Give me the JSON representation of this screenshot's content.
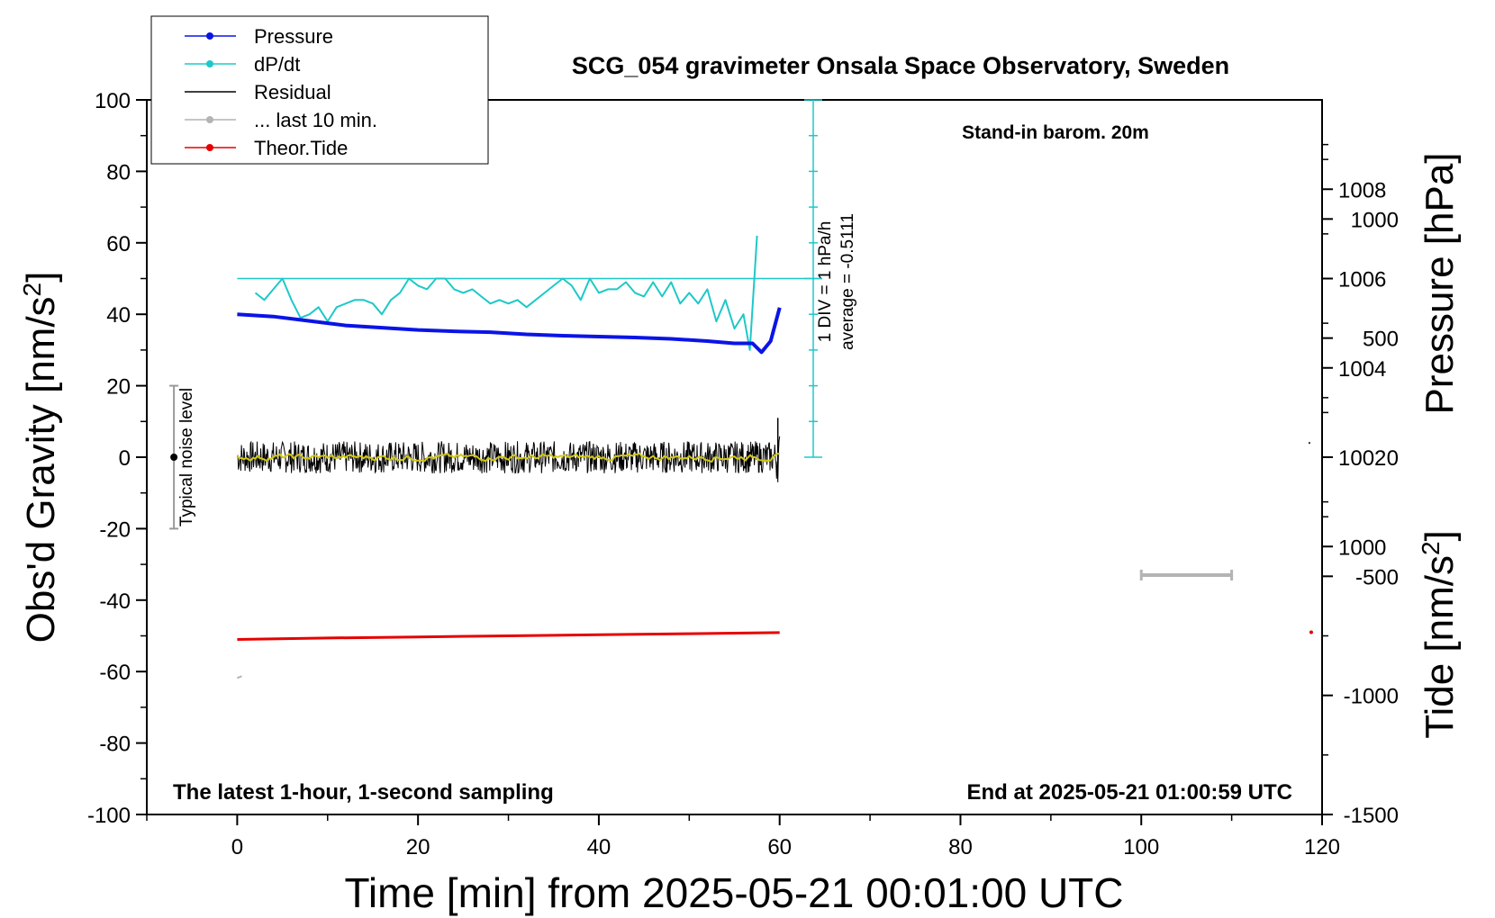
{
  "chart_data": {
    "type": "line",
    "title": "SCG_054 gravimeter Onsala Space Observatory, Sweden",
    "subtitle": "Stand-in barom. 20m",
    "xlabel": "Time [min] from 2025-05-21 00:01:00 UTC",
    "ylabel": "Obs'd Gravity [nm/s",
    "ylabel_sup": "2",
    "ylabel_close": "]",
    "y2label": "Pressure [hPa]",
    "y3label": "Tide [nm/s",
    "y3label_sup": "2",
    "y3label_close": "]",
    "xlim": [
      -10,
      120
    ],
    "ylim": [
      -100,
      100
    ],
    "pressure_lim": [
      994,
      1010
    ],
    "tide_lim": [
      -1500,
      1500
    ],
    "x_ticks": [
      "0",
      "20",
      "40",
      "60",
      "80",
      "100",
      "120"
    ],
    "y_ticks": [
      "100",
      "80",
      "60",
      "40",
      "20",
      "0",
      "-20",
      "-40",
      "-60",
      "-80",
      "-100"
    ],
    "pressure_ticks": [
      "1008",
      "1006",
      "1004",
      "1002",
      "1000"
    ],
    "tide_ticks": [
      "1000",
      "500",
      "0",
      "-500",
      "-1000",
      "-1500"
    ],
    "legend": [
      {
        "name": "Pressure",
        "color": "#0a14e6"
      },
      {
        "name": "dP/dt",
        "color": "#1ec8c8"
      },
      {
        "name": "Residual",
        "color": "#000000"
      },
      {
        "name": "... last 10 min.",
        "color": "#b4b4b4"
      },
      {
        "name": "Theor.Tide",
        "color": "#e60000"
      }
    ],
    "annotations": {
      "left_bottom": "The latest 1-hour, 1-second sampling",
      "right_bottom": "End at 2025-05-21 01:00:59 UTC",
      "noise": "Typical noise level",
      "dpdt_scale": "1 DIV = 1 hPa/h",
      "dpdt_average": "average = -0.5111"
    },
    "series": [
      {
        "name": "Pressure",
        "axis": "hPa",
        "x": [
          0,
          4,
          8,
          12,
          16,
          20,
          24,
          28,
          32,
          36,
          40,
          44,
          48,
          52,
          55,
          57,
          58,
          59,
          60
        ],
        "values": [
          1005.2,
          1005.15,
          1005.05,
          1004.95,
          1004.9,
          1004.85,
          1004.82,
          1004.8,
          1004.75,
          1004.72,
          1004.7,
          1004.68,
          1004.65,
          1004.6,
          1004.55,
          1004.55,
          1004.35,
          1004.6,
          1005.35
        ]
      },
      {
        "name": "dP/dt",
        "axis": "gravity",
        "x": [
          2,
          3,
          4,
          5,
          6,
          7,
          8,
          9,
          10,
          11,
          12,
          13,
          14,
          15,
          16,
          17,
          18,
          19,
          20,
          21,
          22,
          23,
          24,
          25,
          26,
          27,
          28,
          29,
          30,
          31,
          32,
          33,
          34,
          35,
          36,
          37,
          38,
          39,
          40,
          41,
          42,
          43,
          44,
          45,
          46,
          47,
          48,
          49,
          50,
          51,
          52,
          53,
          54,
          55,
          56,
          56.7,
          57.5
        ],
        "values": [
          46,
          44,
          47,
          50,
          44,
          39,
          40,
          42,
          38,
          42,
          43,
          44,
          44,
          43,
          40,
          44,
          46,
          50,
          48,
          47,
          50,
          50,
          47,
          46,
          47,
          45,
          43,
          44,
          43,
          44,
          42,
          44,
          46,
          48,
          50,
          48,
          44,
          50,
          46,
          47,
          47,
          49,
          46,
          45,
          49,
          45,
          49,
          43,
          46,
          43,
          47,
          38,
          44,
          36,
          40,
          30,
          62
        ]
      },
      {
        "name": "Residual",
        "axis": "gravity",
        "x": [
          0,
          60
        ],
        "values": [
          0,
          0
        ],
        "band": [
          -4,
          5
        ]
      },
      {
        "name": "Theor.Tide",
        "axis": "gravity",
        "x": [
          0,
          10,
          20,
          30,
          40,
          50,
          60
        ],
        "values": [
          -51,
          -50.6,
          -50.3,
          -50,
          -49.7,
          -49.4,
          -49.1
        ]
      }
    ],
    "noise_bar": {
      "center": 0,
      "half_range": 20
    },
    "dpdt_axis": {
      "min": 0,
      "max": 100,
      "average_line": 50
    }
  }
}
